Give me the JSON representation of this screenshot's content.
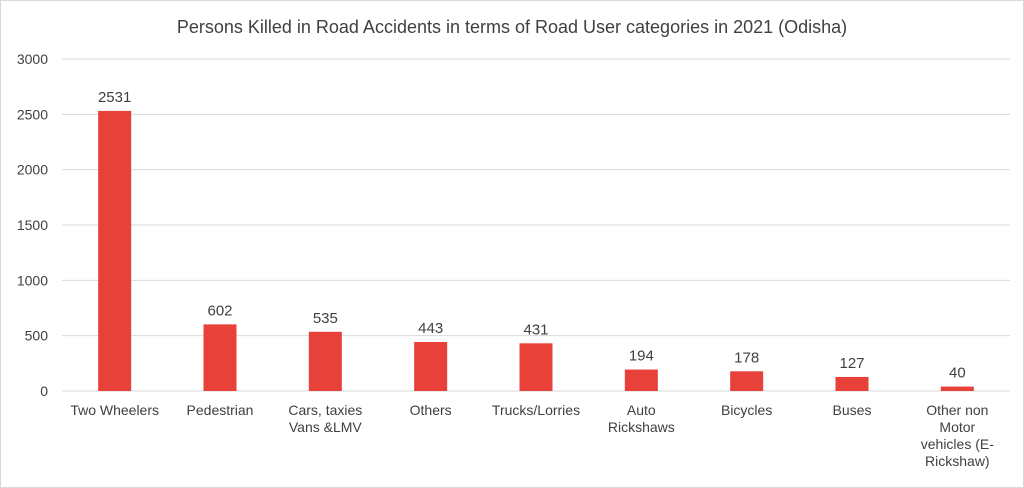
{
  "chart_data": {
    "type": "bar",
    "title": "Persons Killed  in Road Accidents in terms of Road User categories in 2021 (Odisha)",
    "categories": [
      [
        "Two Wheelers"
      ],
      [
        "Pedestrian"
      ],
      [
        "Cars, taxies",
        "Vans &LMV"
      ],
      [
        "Others"
      ],
      [
        "Trucks/Lorries"
      ],
      [
        "Auto",
        "Rickshaws"
      ],
      [
        "Bicycles"
      ],
      [
        "Buses"
      ],
      [
        "Other non",
        "Motor",
        "vehicles (E-",
        "Rickshaw)"
      ]
    ],
    "values": [
      2531,
      602,
      535,
      443,
      431,
      194,
      178,
      127,
      40
    ],
    "ylim": [
      0,
      3000
    ],
    "yticks": [
      0,
      500,
      1000,
      1500,
      2000,
      2500,
      3000
    ],
    "bar_color": "#e8413a",
    "grid_color": "#d9d9d9",
    "grid": true,
    "legend": "none"
  }
}
